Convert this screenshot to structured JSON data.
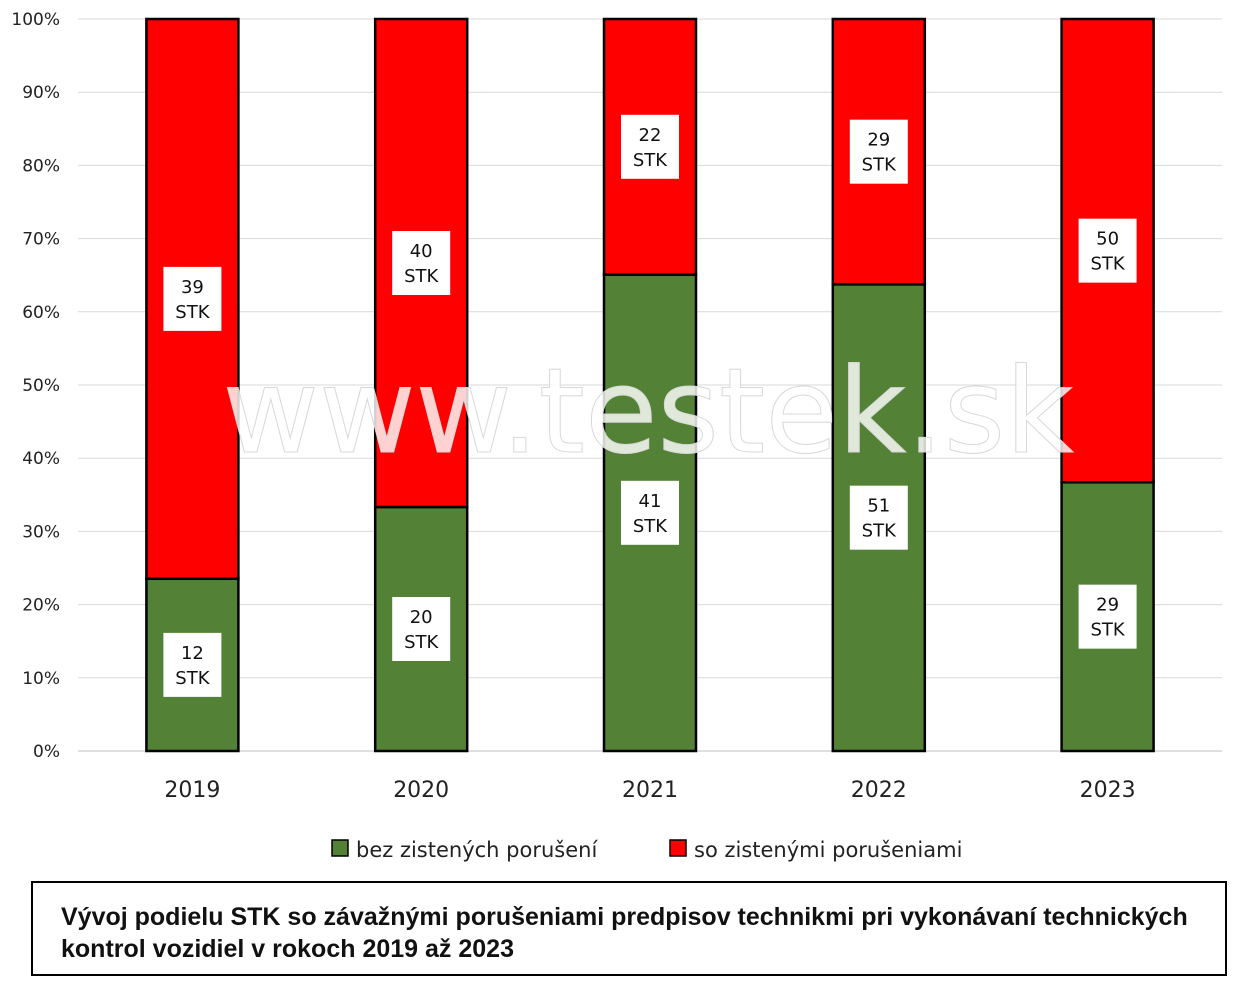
{
  "chart_data": {
    "type": "bar",
    "stacked": true,
    "normalized_percent": true,
    "categories": [
      "2019",
      "2020",
      "2021",
      "2022",
      "2023"
    ],
    "series": [
      {
        "name": "bez zistených porušení",
        "color": "#538135",
        "values": [
          12,
          20,
          41,
          51,
          29
        ],
        "labels": [
          "12\nSTK",
          "20\nSTK",
          "41\nSTK",
          "51\nSTK",
          "29\nSTK"
        ]
      },
      {
        "name": "so zistenými porušeniami",
        "color": "#ff0000",
        "values": [
          39,
          40,
          22,
          29,
          50
        ],
        "labels": [
          "39\nSTK",
          "40\nSTK",
          "22\nSTK",
          "29\nSTK",
          "50\nSTK"
        ]
      }
    ],
    "y_ticks": [
      "0%",
      "10%",
      "20%",
      "30%",
      "40%",
      "50%",
      "60%",
      "70%",
      "80%",
      "90%",
      "100%"
    ],
    "ylim": [
      0,
      100
    ],
    "grid": true,
    "legend_position": "bottom"
  },
  "watermark": "www.testek.sk",
  "caption": "Vývoj podielu STK so závažnými porušeniami predpisov technikmi pri vykonávaní technických kontrol vozidiel v rokoch 2019 až 2023"
}
